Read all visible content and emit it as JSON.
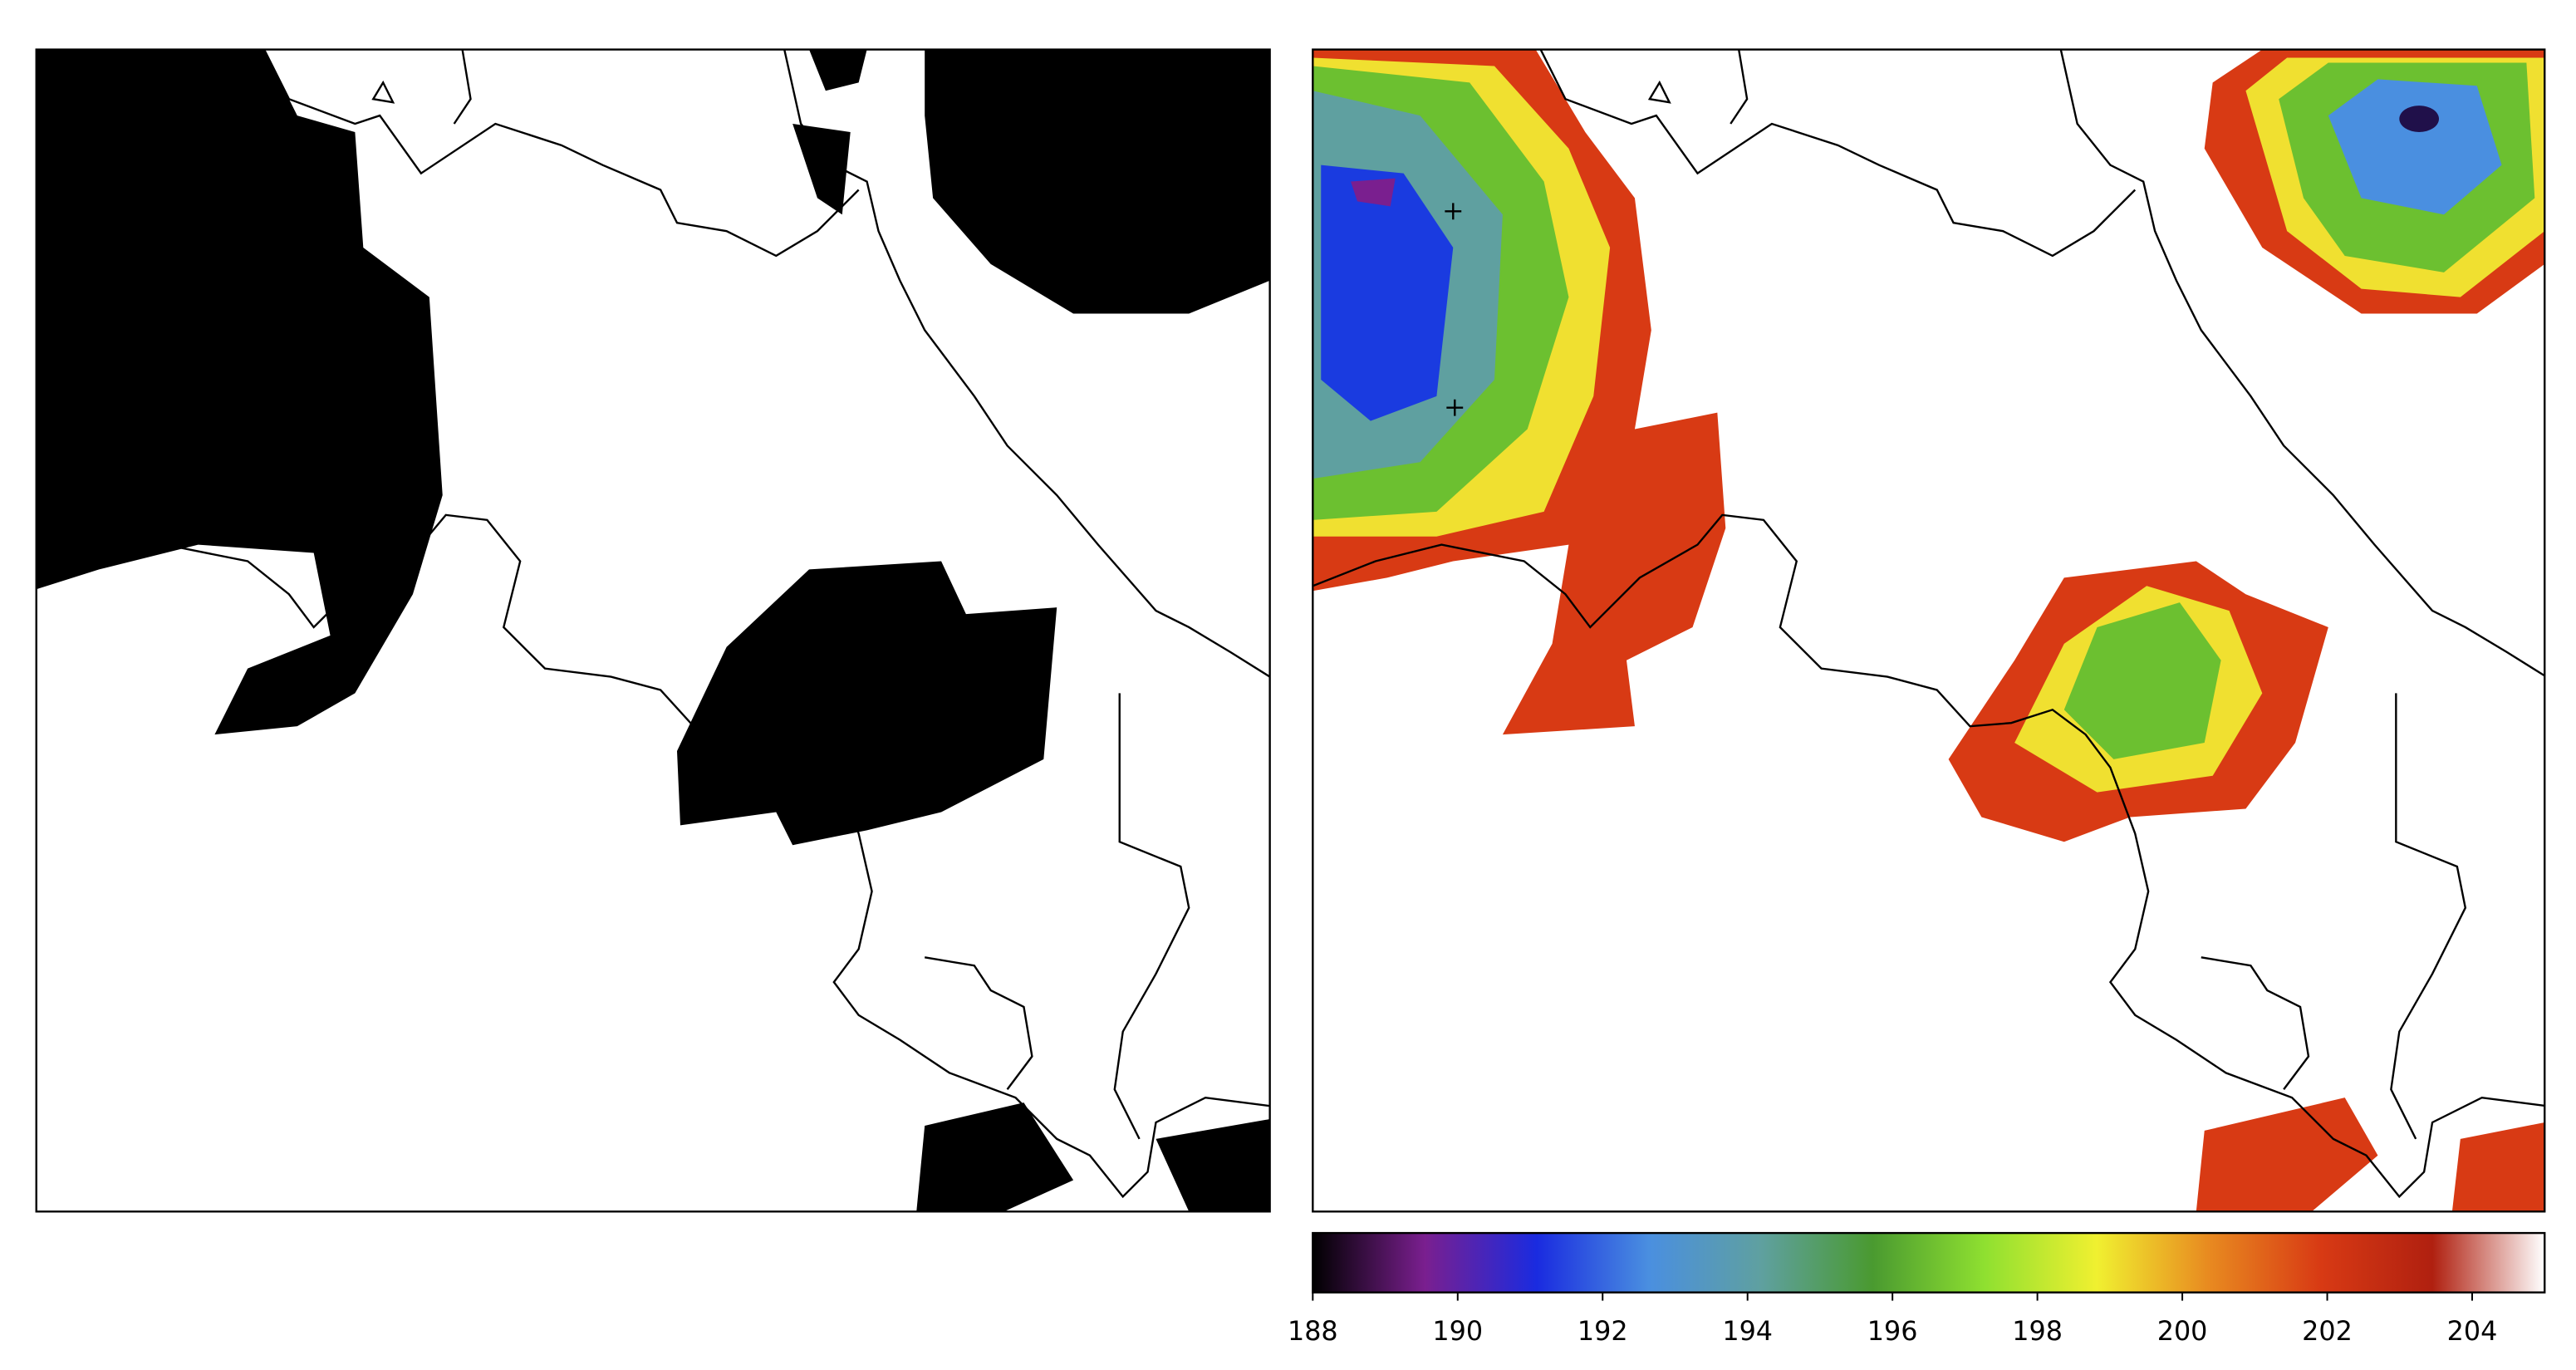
{
  "colorbar": {
    "clim": [
      188,
      205
    ],
    "ticks": [
      188,
      190,
      192,
      194,
      196,
      198,
      200,
      202,
      204
    ],
    "colormap": [
      "#000000",
      "#7a1f8f",
      "#1a2be0",
      "#4a8fe0",
      "#5fa0a0",
      "#4a9a30",
      "#8fe030",
      "#f0f030",
      "#e88a20",
      "#d83a14",
      "#b02010",
      "#ffffff"
    ]
  }
}
